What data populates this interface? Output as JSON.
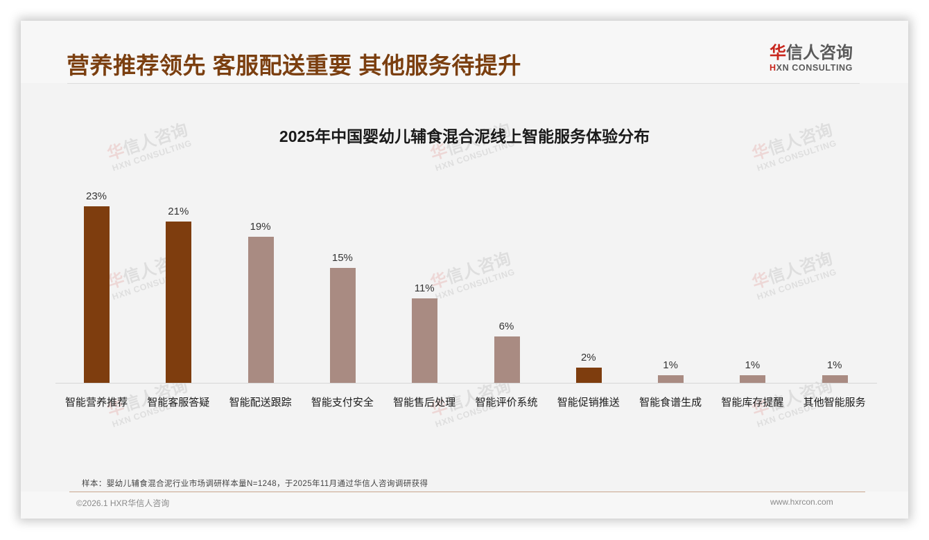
{
  "header": {
    "title": "营养推荐领先 客服配送重要 其他服务待提升",
    "logo": {
      "cn_first": "华",
      "cn_rest": "信人咨询",
      "en_first": "H",
      "en_rest": "XN CONSULTING"
    }
  },
  "watermark": {
    "cn_first": "华",
    "cn_rest": "信人咨询",
    "en": "HXN CONSULTING"
  },
  "colors": {
    "highlight_bar": "#7e3d0e",
    "normal_bar": "#a98b82",
    "title_text": "#7b3f10",
    "logo_red": "#c8261d"
  },
  "chart_data": {
    "type": "bar",
    "title": "2025年中国婴幼儿辅食混合泥线上智能服务体验分布",
    "xlabel": "",
    "ylabel": "",
    "ylim": [
      0,
      25
    ],
    "grid": false,
    "legend": null,
    "value_format": "percent",
    "categories": [
      "智能营养推荐",
      "智能客服答疑",
      "智能配送跟踪",
      "智能支付安全",
      "智能售后处理",
      "智能评价系统",
      "智能促销推送",
      "智能食谱生成",
      "智能库存提醒",
      "其他智能服务"
    ],
    "values": [
      23,
      21,
      19,
      15,
      11,
      6,
      2,
      1,
      1,
      1
    ],
    "labels": [
      "23%",
      "21%",
      "19%",
      "15%",
      "11%",
      "6%",
      "2%",
      "1%",
      "1%",
      "1%"
    ],
    "highlighted": [
      true,
      true,
      false,
      false,
      false,
      false,
      true,
      false,
      false,
      false
    ]
  },
  "footer": {
    "sample_note": "样本：婴幼儿辅食混合泥行业市场调研样本量N=1248，于2025年11月通过华信人咨询调研获得",
    "copyright": "©2026.1 HXR华信人咨询",
    "website": "www.hxrcon.com"
  }
}
